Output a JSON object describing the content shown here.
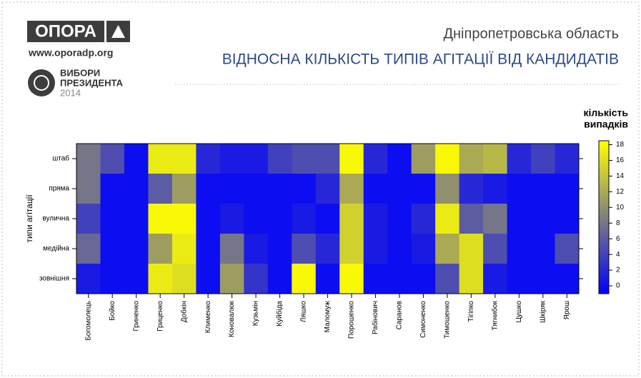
{
  "header": {
    "logo": "ОПОРА",
    "site": "www.oporadp.org",
    "badge_lines": [
      "ВИБОРИ",
      "ПРЕЗИДЕНТА",
      "2014"
    ]
  },
  "chart_data": {
    "type": "heatmap",
    "subtitle": "Дніпропетровська область",
    "title": "ВІДНОСНА КІЛЬКІСТЬ ТИПІВ АГІТАЦІЇ ВІД КАНДИДАТІВ",
    "y_label": "типи агітації",
    "colorbar_title": [
      "кількість",
      "випадків"
    ],
    "categories": [
      "Богомолець",
      "Бойко",
      "Гриненко",
      "Гриценко",
      "Добкін",
      "Клименко",
      "Коновалюк",
      "Кузьмін",
      "Куйбіда",
      "Ляшко",
      "Маломуж",
      "Порошенко",
      "Рабінович",
      "Саранов",
      "Симоненко",
      "Тимошенко",
      "Тігіпко",
      "Тягнибок",
      "Цушко",
      "Шкіряк",
      "Ярош"
    ],
    "rows": [
      "штаб",
      "пряма",
      "вулична",
      "медійна",
      "зовнішня"
    ],
    "values": [
      [
        8,
        5,
        0,
        17,
        17,
        2,
        1,
        1,
        4,
        5,
        5,
        18,
        2,
        0,
        11,
        18,
        12,
        13,
        2,
        4,
        2
      ],
      [
        8,
        0,
        0,
        6,
        11,
        0,
        0,
        0,
        0,
        0,
        2,
        12,
        0,
        0,
        0,
        10,
        2,
        1,
        0,
        0,
        0
      ],
      [
        4,
        0,
        0,
        18,
        18,
        0,
        1,
        0,
        0,
        1,
        0,
        15,
        1,
        0,
        2,
        17,
        6,
        8,
        0,
        0,
        0
      ],
      [
        7,
        0,
        0,
        11,
        17,
        0,
        8,
        1,
        0,
        5,
        2,
        15,
        1,
        0,
        1,
        12,
        16,
        5,
        0,
        0,
        5
      ],
      [
        1,
        0,
        0,
        17,
        16,
        0,
        11,
        3,
        0,
        18,
        0,
        18,
        0,
        0,
        0,
        5,
        16,
        1,
        0,
        0,
        0
      ]
    ],
    "colors": [
      "#0000ff",
      "#ffff00"
    ],
    "zlim": [
      -1,
      18.5
    ],
    "zticks": [
      0,
      2,
      4,
      6,
      8,
      10,
      12,
      14,
      16,
      18
    ]
  }
}
